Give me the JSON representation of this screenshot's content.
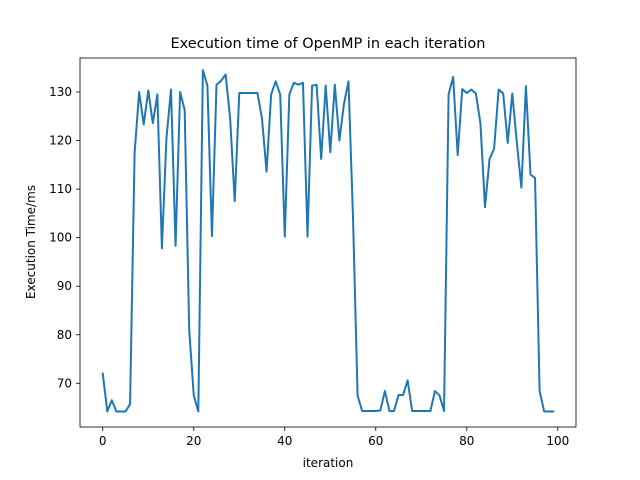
{
  "chart_data": {
    "type": "line",
    "title": "Execution time of OpenMP in each iteration",
    "xlabel": "iteration",
    "ylabel": "Execution Time/ms",
    "xlim": [
      -5,
      104
    ],
    "ylim": [
      61,
      137
    ],
    "xticks": [
      0,
      20,
      40,
      60,
      80,
      100
    ],
    "yticks": [
      70,
      80,
      90,
      100,
      110,
      120,
      130
    ],
    "grid": false,
    "legend": "none",
    "series": [
      {
        "color": "#1f77b4",
        "x": [
          0,
          1,
          2,
          3,
          4,
          5,
          6,
          7,
          8,
          9,
          10,
          11,
          12,
          13,
          14,
          15,
          16,
          17,
          18,
          19,
          20,
          21,
          22,
          23,
          24,
          25,
          26,
          27,
          28,
          29,
          30,
          31,
          32,
          33,
          34,
          35,
          36,
          37,
          38,
          39,
          40,
          41,
          42,
          43,
          44,
          45,
          46,
          47,
          48,
          49,
          50,
          51,
          52,
          53,
          54,
          55,
          56,
          57,
          58,
          59,
          60,
          61,
          62,
          63,
          64,
          65,
          66,
          67,
          68,
          69,
          70,
          71,
          72,
          73,
          74,
          75,
          76,
          77,
          78,
          79,
          80,
          81,
          82,
          83,
          84,
          85,
          86,
          87,
          88,
          89,
          90,
          91,
          92,
          93,
          94,
          95,
          96,
          97,
          98,
          99
        ],
        "y": [
          72.0,
          64.2,
          66.5,
          64.2,
          64.2,
          64.2,
          65.7,
          117.5,
          130.0,
          123.3,
          130.3,
          123.6,
          129.5,
          97.8,
          120.5,
          130.5,
          98.3,
          130.0,
          126.3,
          81.0,
          67.5,
          64.2,
          134.5,
          131.3,
          100.3,
          131.5,
          132.3,
          133.6,
          124.5,
          107.5,
          129.8,
          129.8,
          129.8,
          129.8,
          129.8,
          124.5,
          113.6,
          129.5,
          132.2,
          129.5,
          100.2,
          129.5,
          131.9,
          131.5,
          131.9,
          100.2,
          131.3,
          131.5,
          116.2,
          131.3,
          117.6,
          131.5,
          120.0,
          127.5,
          132.2,
          104.0,
          67.5,
          64.3,
          64.3,
          64.3,
          64.3,
          64.4,
          68.4,
          64.3,
          64.3,
          67.6,
          67.6,
          70.6,
          64.3,
          64.3,
          64.3,
          64.3,
          64.3,
          68.4,
          67.5,
          64.3,
          129.5,
          133.1,
          117.0,
          130.6,
          129.8,
          130.5,
          129.7,
          123.5,
          106.3,
          116.2,
          118.3,
          130.5,
          129.7,
          119.5,
          129.7,
          119.6,
          110.3,
          131.2,
          113.0,
          112.3,
          68.4,
          64.2,
          64.2,
          64.2
        ]
      }
    ]
  }
}
